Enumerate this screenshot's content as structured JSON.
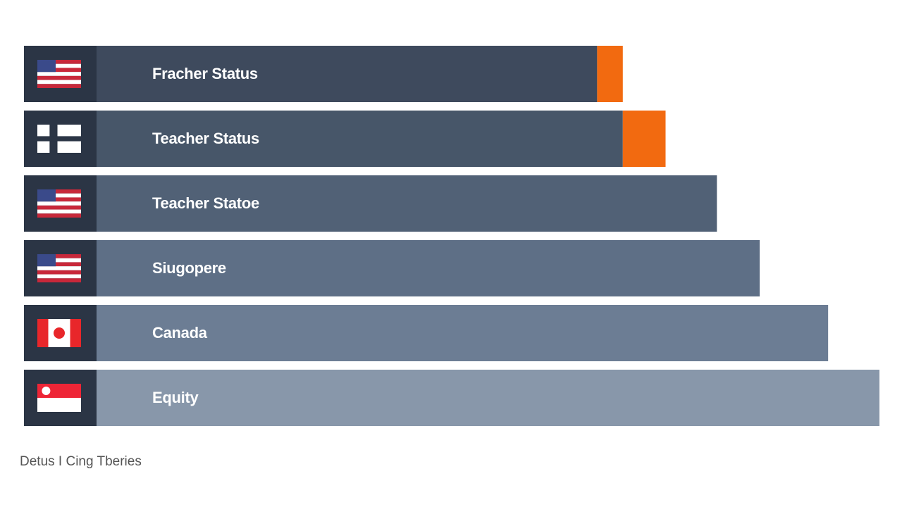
{
  "chart_data": {
    "type": "hbar",
    "categories": [
      "Fracher Status",
      "Teacher Status",
      "Teacher Statoe",
      "Siugopere",
      "Canada",
      "Equity"
    ],
    "series": [
      {
        "colors": [
          "#3e4a5d",
          "#475669",
          "#516176",
          "#5e6f86",
          "#6c7d94",
          "#8897aa"
        ],
        "values": [
          67,
          70,
          81,
          86,
          94,
          100
        ]
      },
      {
        "color": "#f26a10",
        "values": [
          3,
          5,
          0,
          0,
          0,
          0
        ]
      }
    ],
    "xlim": [
      0,
      100
    ],
    "caption": "Detus I Cing Tberies"
  }
}
